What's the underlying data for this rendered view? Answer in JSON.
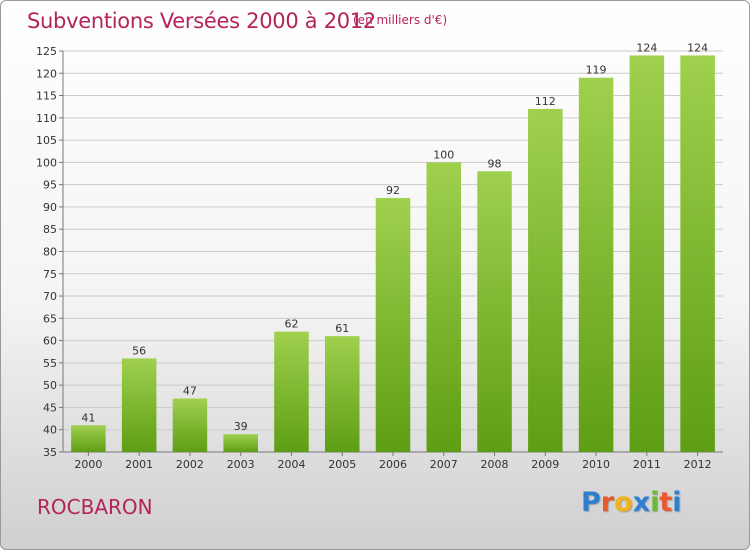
{
  "header": {
    "title": "Subventions Versées 2000 à 2012",
    "unit_note": "(en milliers d'€)"
  },
  "footer": {
    "commune": "ROCBARON",
    "logo_letters": [
      "P",
      "r",
      "o",
      "x",
      "i",
      "t",
      "i"
    ],
    "logo_colors": [
      "#2f7fd0",
      "#e8582a",
      "#f2b21b",
      "#2f7fd0",
      "#6bb83a",
      "#e8582a",
      "#2f7fd0"
    ]
  },
  "colors": {
    "title": "#b4235a",
    "bar_top": "#9fd04e",
    "bar_bottom": "#5e9e14",
    "grid": "#cccccc"
  },
  "chart_data": {
    "type": "bar",
    "title": "Subventions Versées 2000 à 2012",
    "subtitle": "(en milliers d'€)",
    "categories": [
      "2000",
      "2001",
      "2002",
      "2003",
      "2004",
      "2005",
      "2006",
      "2007",
      "2008",
      "2009",
      "2010",
      "2011",
      "2012"
    ],
    "values": [
      41,
      56,
      47,
      39,
      62,
      61,
      92,
      100,
      98,
      112,
      119,
      124,
      124
    ],
    "ylim": [
      35,
      125
    ],
    "ytick_step": 5,
    "grid": true,
    "xlabel": "",
    "ylabel": ""
  }
}
